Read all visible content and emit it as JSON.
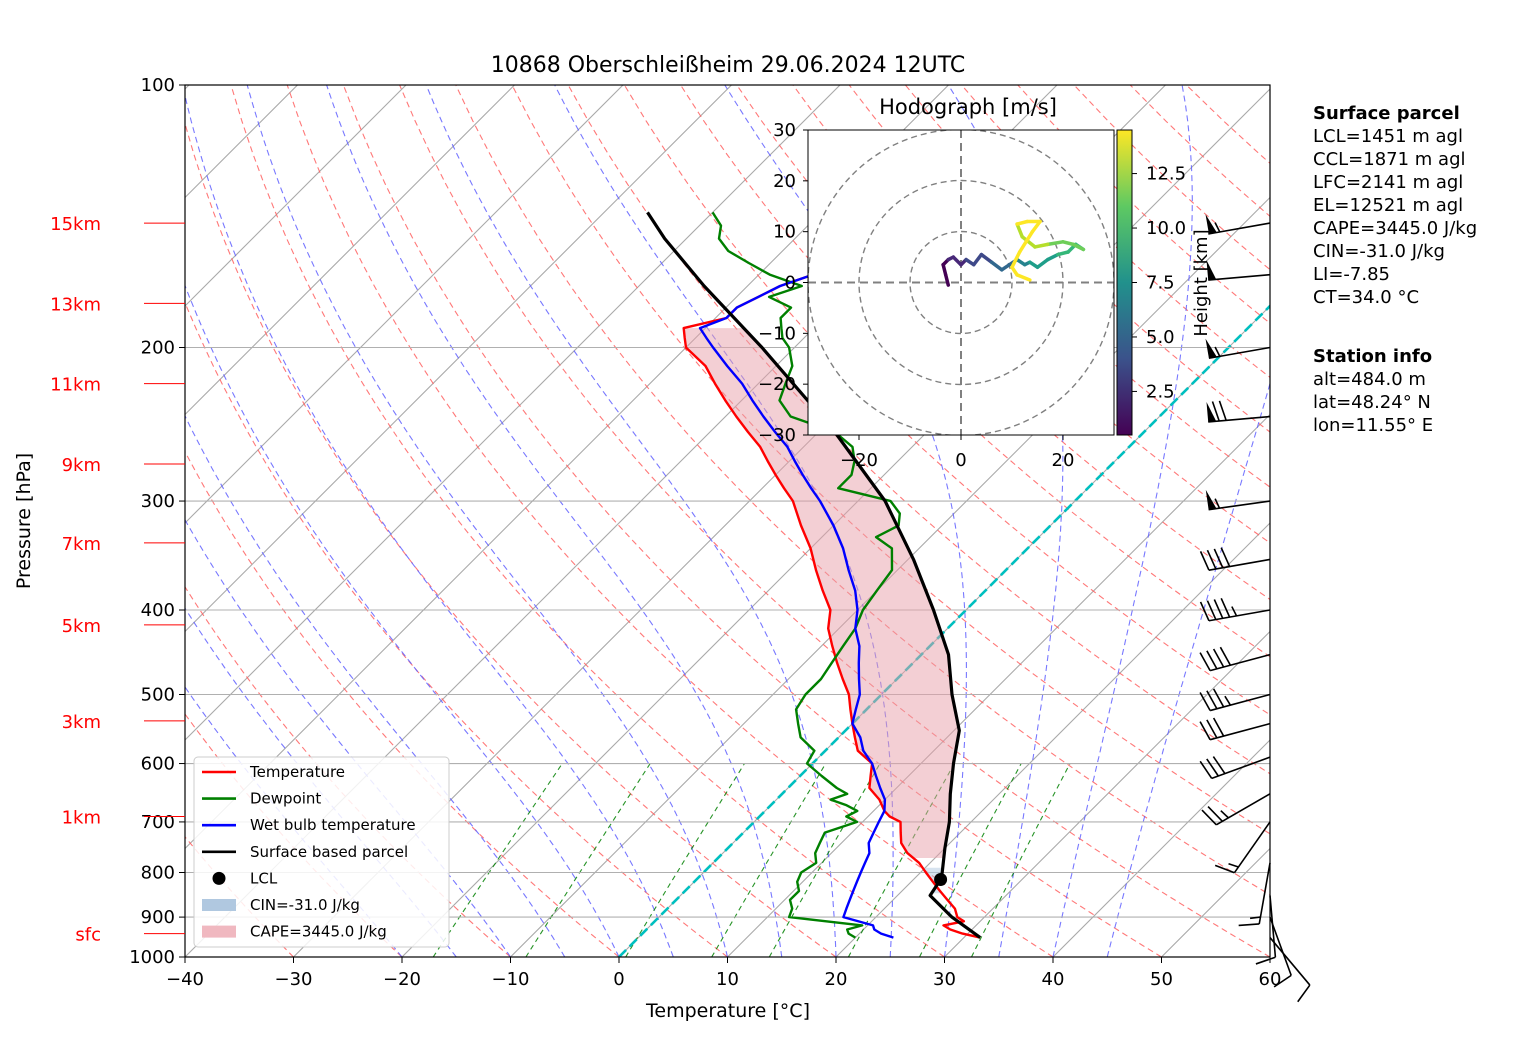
{
  "chart_data": {
    "type": "skew-t",
    "title": "10868 Oberschleißheim 29.06.2024 12UTC",
    "xlabel": "Temperature [°C]",
    "ylabel": "Pressure [hPa]",
    "xlim": [
      -40,
      60
    ],
    "ylim": [
      1000,
      100
    ],
    "log_pressure": true,
    "grid": true,
    "xticks": [
      "−40",
      "−30",
      "−20",
      "−10",
      "0",
      "10",
      "20",
      "30",
      "40",
      "50",
      "60"
    ],
    "xtick_values": [
      -40,
      -30,
      -20,
      -10,
      0,
      10,
      20,
      30,
      40,
      50,
      60
    ],
    "yticks": [
      "100",
      "200",
      "300",
      "400",
      "500",
      "600",
      "700",
      "800",
      "900",
      "1000"
    ],
    "ytick_values": [
      100,
      200,
      300,
      400,
      500,
      600,
      700,
      800,
      900,
      1000
    ],
    "height_labels": [
      {
        "label": "15km",
        "p": 144
      },
      {
        "label": "13km",
        "p": 178
      },
      {
        "label": "11km",
        "p": 220
      },
      {
        "label": "9km",
        "p": 272
      },
      {
        "label": "7km",
        "p": 335
      },
      {
        "label": "5km",
        "p": 416
      },
      {
        "label": "3km",
        "p": 536
      },
      {
        "label": "1km",
        "p": 690
      },
      {
        "label": "sfc",
        "p": 940
      }
    ],
    "height_label_color": "#ff0000",
    "series": [
      {
        "name": "Temperature",
        "color": "#ff0000",
        "p": [
          950,
          940,
          930,
          920,
          910,
          900,
          880,
          860,
          840,
          820,
          800,
          780,
          760,
          740,
          720,
          700,
          690,
          680,
          660,
          640,
          620,
          600,
          580,
          560,
          540,
          520,
          500,
          480,
          460,
          440,
          420,
          400,
          380,
          360,
          340,
          320,
          300,
          290,
          280,
          270,
          260,
          250,
          240,
          230,
          220,
          210,
          200,
          195,
          190,
          185,
          180,
          175,
          170,
          165,
          160,
          155,
          150,
          145,
          140
        ],
        "values": [
          31.5,
          29.5,
          28.0,
          27.0,
          28.5,
          27.5,
          26.5,
          25.0,
          23.5,
          22.0,
          20.5,
          19.0,
          17.0,
          15.5,
          14.5,
          13.5,
          12.0,
          11.0,
          9.5,
          7.5,
          6.5,
          5.5,
          3.0,
          1.5,
          0.0,
          -1.5,
          -3.0,
          -5.0,
          -7.0,
          -9.0,
          -11.0,
          -12.5,
          -15.0,
          -17.5,
          -20.0,
          -23.0,
          -26.0,
          -28.0,
          -30.0,
          -32.0,
          -34.0,
          -36.5,
          -39.0,
          -41.5,
          -44.0,
          -46.5,
          -50.0,
          -51.0,
          -52.0,
          -49.0,
          -49.0,
          -48.0,
          -47.0,
          -45.0,
          -44.0,
          -44.5,
          -43.0,
          -42.0,
          -41.0
        ]
      },
      {
        "name": "Dewpoint",
        "color": "#008000",
        "p": [
          950,
          940,
          930,
          920,
          900,
          880,
          860,
          840,
          820,
          800,
          780,
          760,
          740,
          720,
          700,
          690,
          680,
          670,
          660,
          650,
          640,
          620,
          600,
          580,
          560,
          540,
          520,
          500,
          480,
          460,
          440,
          420,
          400,
          380,
          360,
          340,
          330,
          320,
          310,
          300,
          290,
          280,
          270,
          260,
          250,
          240,
          230,
          220,
          210,
          200,
          195,
          190,
          185,
          180,
          175,
          170,
          165,
          160,
          155,
          150,
          145,
          140
        ],
        "values": [
          20.0,
          19.0,
          18.5,
          19.5,
          12.0,
          11.5,
          10.5,
          10.5,
          9.5,
          9.0,
          9.5,
          8.5,
          8.0,
          7.5,
          9.5,
          8.0,
          8.5,
          7.0,
          5.0,
          6.0,
          4.5,
          2.0,
          -0.5,
          -1.0,
          -3.5,
          -5.0,
          -6.5,
          -7.0,
          -7.0,
          -7.5,
          -8.0,
          -8.5,
          -9.5,
          -10.0,
          -10.5,
          -12.5,
          -15.0,
          -14.0,
          -15.0,
          -17.0,
          -23.0,
          -23.0,
          -24.0,
          -25.5,
          -28.5,
          -34.0,
          -36.5,
          -37.5,
          -38.5,
          -40.5,
          -42.0,
          -43.0,
          -44.0,
          -44.0,
          -47.0,
          -45.0,
          -49.0,
          -52.0,
          -55.0,
          -57.0,
          -58.0,
          -60.0
        ]
      },
      {
        "name": "Wet bulb temperature",
        "color": "#0000ff",
        "p": [
          950,
          940,
          930,
          920,
          900,
          880,
          860,
          840,
          820,
          800,
          780,
          760,
          740,
          720,
          700,
          680,
          660,
          640,
          620,
          600,
          580,
          560,
          540,
          520,
          500,
          480,
          460,
          440,
          420,
          400,
          380,
          360,
          340,
          320,
          300,
          290,
          280,
          270,
          260,
          250,
          240,
          230,
          220,
          210,
          200,
          195,
          190,
          185,
          180,
          175,
          170,
          165,
          160,
          155,
          150,
          145,
          140
        ],
        "values": [
          23.5,
          22.0,
          21.0,
          20.5,
          17.0,
          16.5,
          16.0,
          15.5,
          15.0,
          14.5,
          14.0,
          13.5,
          12.5,
          12.0,
          11.5,
          11.0,
          10.0,
          8.5,
          7.0,
          5.5,
          3.5,
          2.0,
          0.0,
          -1.0,
          -2.0,
          -3.5,
          -5.0,
          -6.5,
          -8.5,
          -10.0,
          -12.0,
          -14.5,
          -17.0,
          -20.0,
          -23.5,
          -25.5,
          -27.5,
          -29.5,
          -31.5,
          -34.0,
          -36.5,
          -39.0,
          -41.5,
          -44.5,
          -47.5,
          -49.0,
          -50.5,
          -49.0,
          -49.0,
          -48.0,
          -47.0,
          -45.0,
          -44.0,
          -44.5,
          -43.0,
          -42.0,
          -41.0
        ]
      },
      {
        "name": "Surface based parcel",
        "color": "#000000",
        "p": [
          950,
          900,
          850,
          815,
          800,
          750,
          700,
          650,
          600,
          550,
          500,
          450,
          400,
          350,
          300,
          250,
          200,
          170,
          150,
          140
        ],
        "values": [
          31.5,
          27.0,
          23.0,
          22.5,
          22.0,
          20.0,
          18.0,
          15.5,
          13.0,
          10.5,
          6.5,
          2.5,
          -3.0,
          -9.5,
          -17.5,
          -28.5,
          -43.0,
          -54.0,
          -62.0,
          -66.0
        ]
      }
    ],
    "lcl": {
      "p": 815,
      "t": 22.5
    },
    "legend": [
      {
        "label": "Temperature",
        "kind": "line",
        "color": "#ff0000"
      },
      {
        "label": "Dewpoint",
        "kind": "line",
        "color": "#008000"
      },
      {
        "label": "Wet bulb temperature",
        "kind": "line",
        "color": "#0000ff"
      },
      {
        "label": "Surface based parcel",
        "kind": "line",
        "color": "#000000"
      },
      {
        "label": "LCL",
        "kind": "dot",
        "color": "#000000"
      },
      {
        "label": "CIN=-31.0 J/kg",
        "kind": "patch",
        "color": "#b0c8e0"
      },
      {
        "label": "CAPE=3445.0 J/kg",
        "kind": "patch",
        "color": "#f0b8c0"
      }
    ],
    "legend_position": "lower-left",
    "hodograph": {
      "title": "Hodograph [m/s]",
      "xlim": [
        -30,
        30
      ],
      "ylim": [
        -30,
        30
      ],
      "xticks": [
        "−20",
        "0",
        "20"
      ],
      "xtick_values": [
        -20,
        0,
        20
      ],
      "yticks": [
        "30",
        "20",
        "10",
        "0",
        "−10",
        "−20",
        "−30"
      ],
      "ytick_values": [
        30,
        20,
        10,
        0,
        -10,
        -20,
        -30
      ],
      "rings": [
        10,
        20,
        30
      ],
      "colorbar_label": "Height [km]",
      "colorbar_ticks": [
        "2.5",
        "5.0",
        "7.5",
        "10.0",
        "12.5"
      ],
      "colorbar_values": [
        2.5,
        5.0,
        7.5,
        10.0,
        12.5
      ],
      "colorbar_range": [
        0.5,
        14.5
      ],
      "colormap": "viridis",
      "u": [
        -2.5,
        -3.0,
        -3.5,
        -2.5,
        -1.5,
        0.0,
        1.0,
        2.5,
        4.0,
        6.0,
        8.0,
        9.5,
        11.0,
        12.5,
        13.5,
        15.0,
        17.0,
        19.0,
        21.0,
        22.5,
        24.0,
        22.0,
        20.0,
        17.0,
        14.5,
        12.0,
        11.0,
        13.0,
        15.5,
        14.0,
        11.5,
        10.0,
        11.0,
        13.5
      ],
      "v": [
        -0.5,
        1.5,
        3.5,
        4.5,
        5.0,
        3.5,
        4.5,
        3.5,
        5.5,
        4.0,
        2.5,
        3.5,
        4.5,
        3.5,
        4.0,
        3.0,
        4.5,
        5.5,
        6.0,
        7.5,
        6.5,
        7.5,
        8.0,
        7.5,
        7.0,
        9.0,
        11.5,
        12.0,
        12.0,
        10.0,
        6.0,
        3.0,
        1.5,
        0.5
      ],
      "h": [
        0.5,
        1.0,
        1.5,
        2.0,
        2.5,
        3.0,
        3.5,
        4.0,
        4.5,
        5.0,
        5.5,
        6.0,
        6.5,
        7.0,
        7.5,
        8.0,
        8.5,
        9.0,
        9.5,
        10.0,
        10.5,
        11.0,
        11.5,
        12.0,
        12.5,
        13.0,
        13.5,
        14.0,
        14.2,
        14.0,
        14.0,
        14.2,
        14.3,
        14.4
      ]
    },
    "wind_barbs": [
      {
        "p": 144,
        "dir": 260,
        "spd": 55
      },
      {
        "p": 165,
        "dir": 265,
        "spd": 50
      },
      {
        "p": 200,
        "dir": 260,
        "spd": 55
      },
      {
        "p": 240,
        "dir": 265,
        "spd": 70
      },
      {
        "p": 300,
        "dir": 262,
        "spd": 55
      },
      {
        "p": 350,
        "dir": 260,
        "spd": 40
      },
      {
        "p": 400,
        "dir": 260,
        "spd": 45
      },
      {
        "p": 450,
        "dir": 255,
        "spd": 40
      },
      {
        "p": 500,
        "dir": 255,
        "spd": 35
      },
      {
        "p": 540,
        "dir": 255,
        "spd": 30
      },
      {
        "p": 590,
        "dir": 250,
        "spd": 30
      },
      {
        "p": 650,
        "dir": 240,
        "spd": 25
      },
      {
        "p": 700,
        "dir": 215,
        "spd": 15
      },
      {
        "p": 780,
        "dir": 190,
        "spd": 15
      },
      {
        "p": 850,
        "dir": 175,
        "spd": 10
      },
      {
        "p": 900,
        "dir": 160,
        "spd": 10
      },
      {
        "p": 950,
        "dir": 140,
        "spd": 10
      }
    ]
  },
  "info": {
    "surface_heading": "Surface parcel",
    "surface_lines": [
      "LCL=1451 m agl",
      "CCL=1871 m agl",
      "LFC=2141 m agl",
      "EL=12521 m agl",
      "CAPE=3445.0 J/kg",
      "CIN=-31.0 J/kg",
      "LI=-7.85",
      "CT=34.0 °C"
    ],
    "station_heading": "Station info",
    "station_lines": [
      "alt=484.0 m",
      "lat=48.24° N",
      "lon=11.55° E"
    ]
  }
}
